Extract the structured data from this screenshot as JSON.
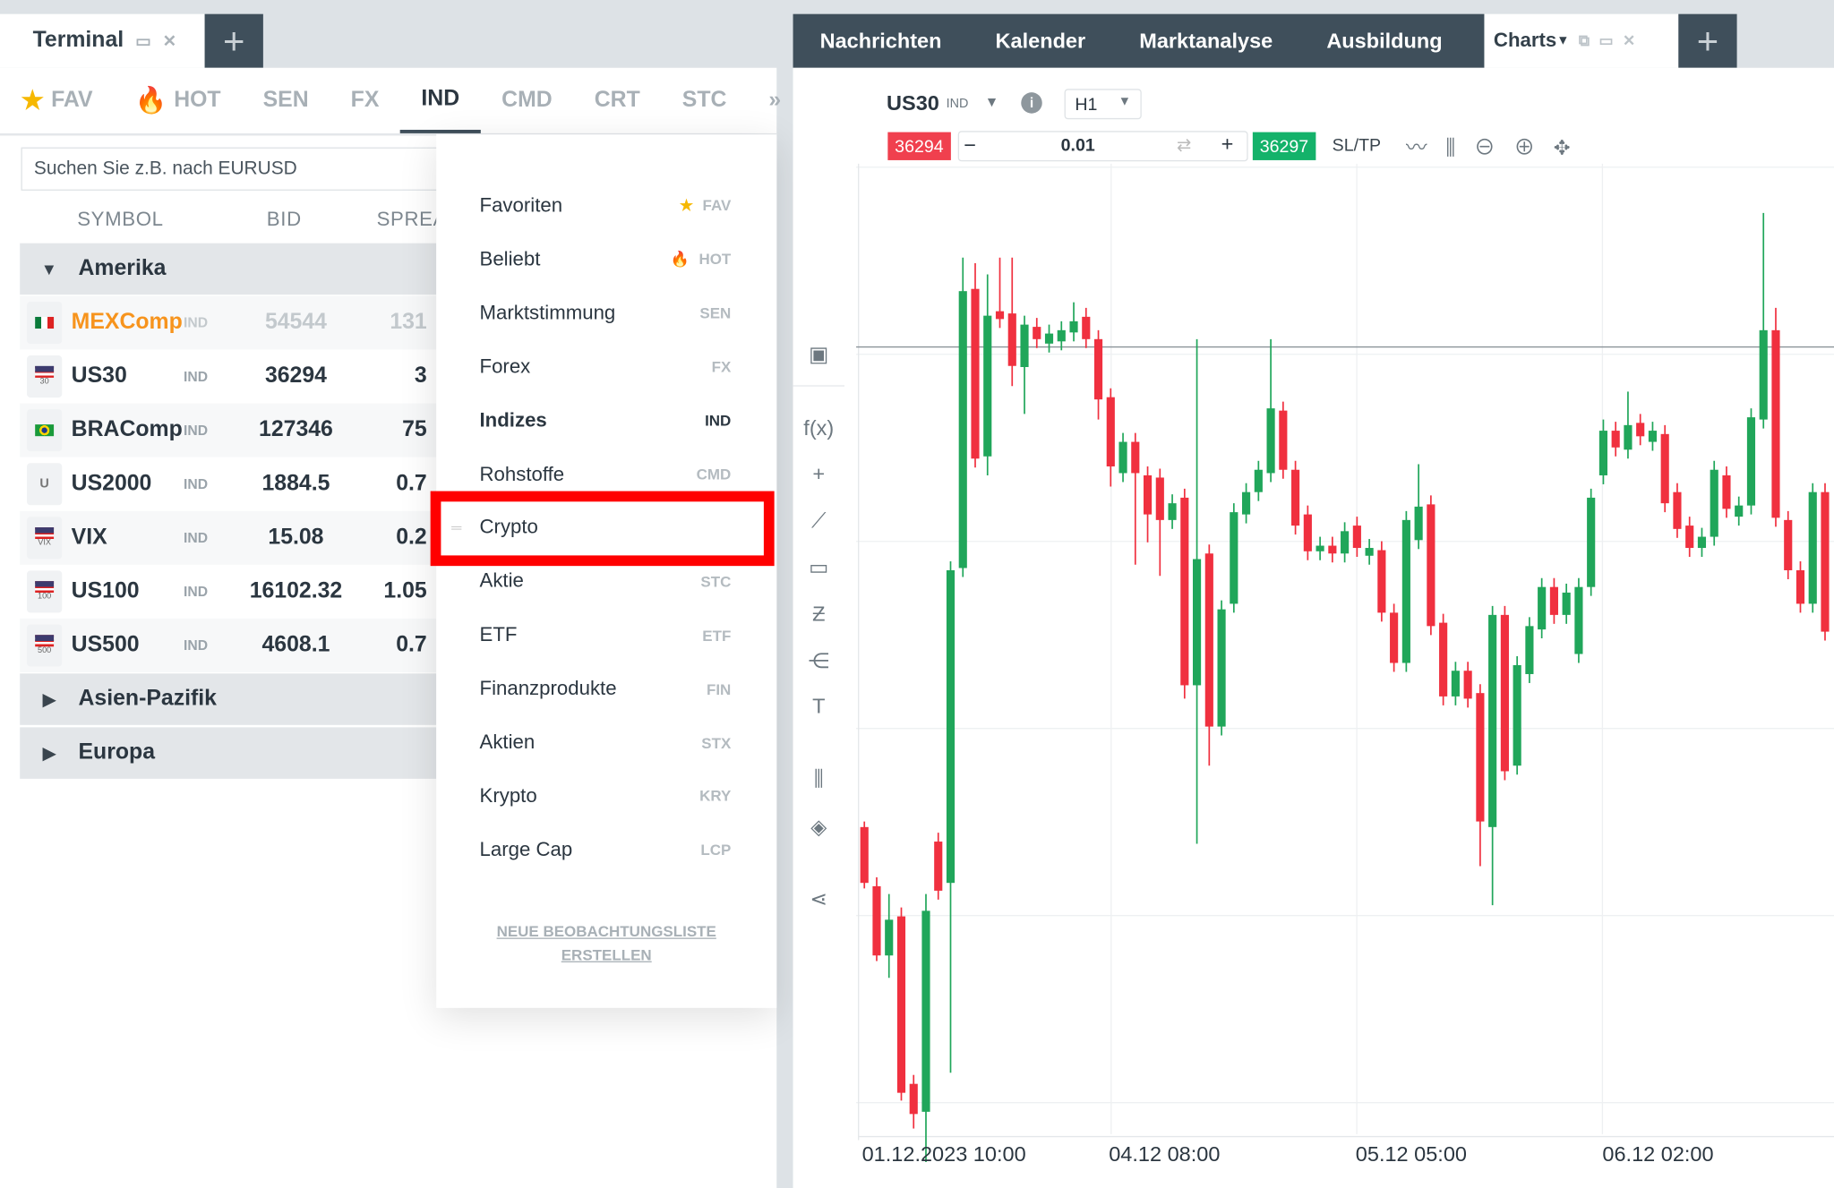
{
  "terminal_tab": {
    "title": "Terminal",
    "restore_icon": "window-icon",
    "close_icon": "close-icon"
  },
  "add_tab_label": "+",
  "categories": [
    {
      "label": "FAV",
      "icon": "star-icon"
    },
    {
      "label": "HOT",
      "icon": "flame-icon"
    },
    {
      "label": "SEN"
    },
    {
      "label": "FX"
    },
    {
      "label": "IND",
      "active": true
    },
    {
      "label": "CMD"
    },
    {
      "label": "CRT"
    },
    {
      "label": "STC"
    },
    {
      "label": "»"
    }
  ],
  "search": {
    "placeholder": "Suchen Sie z.B. nach EURUSD"
  },
  "columns": {
    "symbol": "SYMBOL",
    "bid": "BID",
    "spread": "SPREA"
  },
  "groups": [
    {
      "name": "Amerika",
      "expanded": true
    },
    {
      "name": "Asien-Pazifik"
    },
    {
      "name": "Europa"
    }
  ],
  "rows": [
    {
      "symbol": "MEXComp",
      "type": "IND",
      "bid": "54544",
      "spread": "131",
      "flag": "mexico",
      "badge": "",
      "highlight": true
    },
    {
      "symbol": "US30",
      "type": "IND",
      "bid": "36294",
      "spread": "3",
      "flag": "usa",
      "badge": "30"
    },
    {
      "symbol": "BRAComp",
      "type": "IND",
      "bid": "127346",
      "spread": "75",
      "flag": "brazil",
      "badge": ""
    },
    {
      "symbol": "US2000",
      "type": "IND",
      "bid": "1884.5",
      "spread": "0.7",
      "flag": "none",
      "badge": "U"
    },
    {
      "symbol": "VIX",
      "type": "IND",
      "bid": "15.08",
      "spread": "0.2",
      "flag": "usa",
      "badge": "VIX"
    },
    {
      "symbol": "US100",
      "type": "IND",
      "bid": "16102.32",
      "spread": "1.05",
      "flag": "usa",
      "badge": "100"
    },
    {
      "symbol": "US500",
      "type": "IND",
      "bid": "4608.1",
      "spread": "0.7",
      "flag": "usa",
      "badge": "500"
    }
  ],
  "menu": {
    "items": [
      {
        "label": "Favoriten",
        "code": "FAV",
        "icon": "★"
      },
      {
        "label": "Beliebt",
        "code": "HOT",
        "icon": "🔥"
      },
      {
        "label": "Marktstimmung",
        "code": "SEN"
      },
      {
        "label": "Forex",
        "code": "FX"
      },
      {
        "label": "Indizes",
        "code": "IND",
        "selected": true
      },
      {
        "label": "Rohstoffe",
        "code": "CMD"
      },
      {
        "label": "Crypto",
        "code": "",
        "highlighted": true
      },
      {
        "label": "Aktie",
        "code": "STC"
      },
      {
        "label": "ETF",
        "code": "ETF"
      },
      {
        "label": "Finanzprodukte",
        "code": "FIN"
      },
      {
        "label": "Aktien",
        "code": "STX"
      },
      {
        "label": "Krypto",
        "code": "KRY"
      },
      {
        "label": "Large Cap",
        "code": "LCP"
      }
    ],
    "new_list_line1": "NEUE BEOBACHTUNGSLISTE",
    "new_list_line2": "ERSTELLEN"
  },
  "right_tabs": [
    "Nachrichten",
    "Kalender",
    "Marktanalyse",
    "Ausbildung"
  ],
  "charts_tab": {
    "label": "Charts",
    "icons": [
      "popout-icon",
      "window-icon",
      "close-icon"
    ]
  },
  "chart_header": {
    "symbol": "US30",
    "type": "IND",
    "timeframe": "H1",
    "sell": "36294",
    "volume": "0.01",
    "buy": "36297",
    "sltp": "SL/TP",
    "minus": "−",
    "plus": "+"
  },
  "colors": {
    "up": "#20a65a",
    "down": "#f0303f",
    "dark": "#3f4f5b",
    "sell": "#f0404e",
    "buy": "#14b26a"
  },
  "chart_data": {
    "type": "candlestick",
    "timeframe": "H1",
    "current_price": 36294,
    "xlabels": [
      "01.12.2023 10:00",
      "04.12 08:00",
      "05.12 05:00",
      "06.12 02:00"
    ],
    "ylim": [
      35544,
      36544
    ],
    "candles": [
      [
        35864,
        35869,
        35809,
        35814
      ],
      [
        35811,
        35819,
        35744,
        35749
      ],
      [
        35749,
        35804,
        35729,
        35781
      ],
      [
        35784,
        35792,
        35619,
        35626
      ],
      [
        35634,
        35642,
        35594,
        35607
      ],
      [
        35609,
        35804,
        35564,
        35789
      ],
      [
        35851,
        35859,
        35799,
        35807
      ],
      [
        35814,
        36102,
        35644,
        36094
      ],
      [
        36096,
        36374,
        36088,
        36344
      ],
      [
        36346,
        36369,
        36186,
        36194
      ],
      [
        36196,
        36359,
        36179,
        36322
      ],
      [
        36326,
        36374,
        36311,
        36319
      ],
      [
        36324,
        36374,
        36259,
        36277
      ],
      [
        36276,
        36322,
        36234,
        36314
      ],
      [
        36312,
        36320,
        36293,
        36301
      ],
      [
        36297,
        36314,
        36289,
        36306
      ],
      [
        36299,
        36317,
        36291,
        36309
      ],
      [
        36307,
        36334,
        36299,
        36317
      ],
      [
        36321,
        36329,
        36293,
        36301
      ],
      [
        36301,
        36309,
        36229,
        36247
      ],
      [
        36249,
        36257,
        36169,
        36187
      ],
      [
        36181,
        36217,
        36173,
        36209
      ],
      [
        36209,
        36217,
        36099,
        36181
      ],
      [
        36179,
        36187,
        36119,
        36144
      ],
      [
        36177,
        36185,
        36089,
        36139
      ],
      [
        36139,
        36162,
        36131,
        36154
      ],
      [
        36159,
        36167,
        35979,
        35991
      ],
      [
        35991,
        36301,
        35849,
        36104
      ],
      [
        36109,
        36117,
        35919,
        35954
      ],
      [
        35954,
        36067,
        35946,
        36059
      ],
      [
        36064,
        36154,
        36056,
        36146
      ],
      [
        36144,
        36172,
        36136,
        36164
      ],
      [
        36164,
        36192,
        36156,
        36184
      ],
      [
        36181,
        36301,
        36173,
        36239
      ],
      [
        36237,
        36245,
        36176,
        36184
      ],
      [
        36184,
        36192,
        36126,
        36134
      ],
      [
        36144,
        36152,
        36103,
        36111
      ],
      [
        36111,
        36124,
        36103,
        36116
      ],
      [
        36116,
        36124,
        36101,
        36109
      ],
      [
        36109,
        36137,
        36101,
        36129
      ],
      [
        36134,
        36142,
        36106,
        36114
      ],
      [
        36107,
        36122,
        36099,
        36114
      ],
      [
        36112,
        36120,
        36048,
        36056
      ],
      [
        36056,
        36064,
        36003,
        36011
      ],
      [
        36011,
        36147,
        36003,
        36139
      ],
      [
        36121,
        36189,
        36113,
        36151
      ],
      [
        36153,
        36161,
        36036,
        36044
      ],
      [
        36047,
        36055,
        35973,
        35981
      ],
      [
        35981,
        36012,
        35973,
        36004
      ],
      [
        36004,
        36012,
        35971,
        35979
      ],
      [
        35984,
        35992,
        35829,
        35869
      ],
      [
        35864,
        36062,
        35794,
        36054
      ],
      [
        36054,
        36062,
        35906,
        35914
      ],
      [
        35919,
        36017,
        35911,
        36009
      ],
      [
        36001,
        36052,
        35993,
        36044
      ],
      [
        36041,
        36087,
        36033,
        36079
      ],
      [
        36079,
        36087,
        36046,
        36054
      ],
      [
        36054,
        36082,
        36046,
        36074
      ],
      [
        36019,
        36087,
        36011,
        36079
      ],
      [
        36079,
        36167,
        36071,
        36159
      ],
      [
        36179,
        36229,
        36171,
        36219
      ],
      [
        36219,
        36227,
        36196,
        36204
      ],
      [
        36202,
        36254,
        36194,
        36224
      ],
      [
        36226,
        36234,
        36206,
        36214
      ],
      [
        36209,
        36227,
        36201,
        36219
      ],
      [
        36216,
        36224,
        36146,
        36154
      ],
      [
        36164,
        36172,
        36123,
        36131
      ],
      [
        36134,
        36142,
        36106,
        36114
      ],
      [
        36114,
        36132,
        36106,
        36124
      ],
      [
        36124,
        36192,
        36116,
        36184
      ],
      [
        36179,
        36187,
        36141,
        36149
      ],
      [
        36142,
        36160,
        36134,
        36152
      ],
      [
        36152,
        36239,
        36144,
        36231
      ],
      [
        36229,
        36414,
        36221,
        36309
      ],
      [
        36309,
        36329,
        36133,
        36141
      ],
      [
        36139,
        36147,
        36086,
        36094
      ],
      [
        36094,
        36102,
        36056,
        36064
      ],
      [
        36064,
        36172,
        36056,
        36164
      ],
      [
        36164,
        36172,
        36031,
        36039
      ]
    ]
  }
}
